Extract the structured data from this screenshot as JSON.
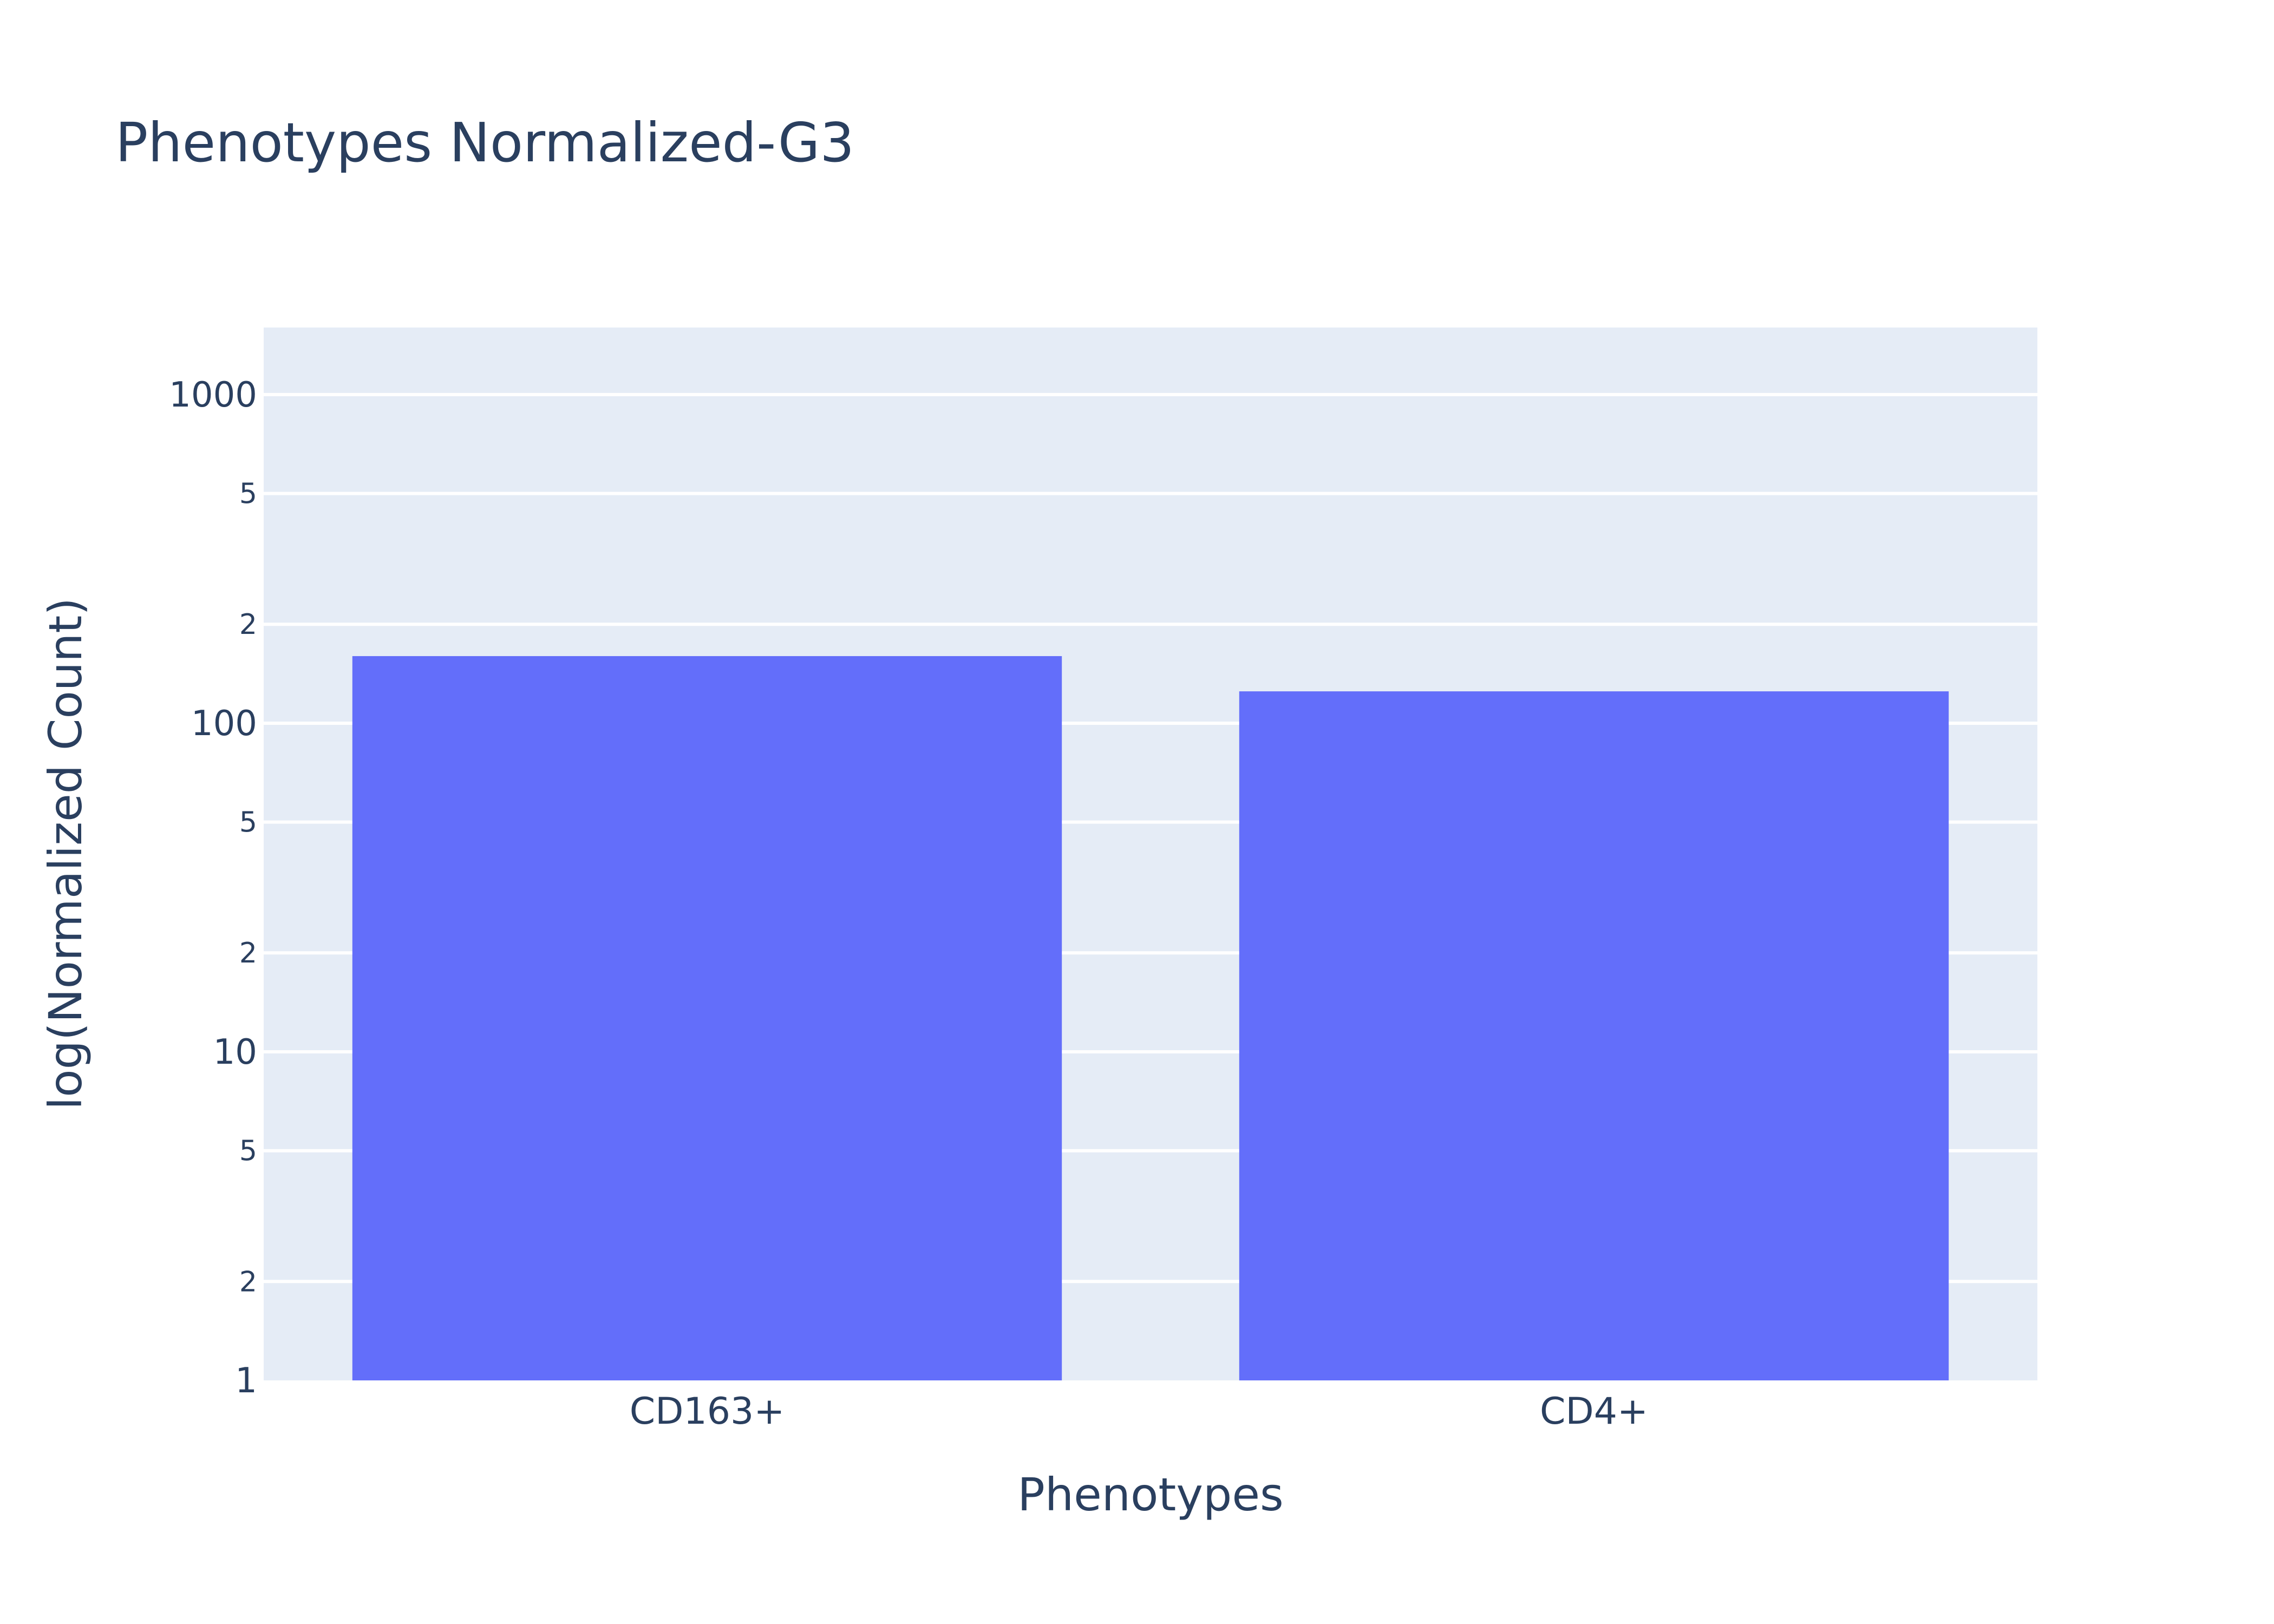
{
  "chart_data": {
    "type": "bar",
    "title": "Phenotypes Normalized-G3",
    "xlabel": "Phenotypes",
    "ylabel": "log(Normalized Count)",
    "categories": [
      "CD163+",
      "CD4+"
    ],
    "values": [
      160,
      125
    ],
    "yscale": "log",
    "ylim": [
      1,
      1600
    ],
    "major_ticks": [
      {
        "value": 1,
        "label": "1"
      },
      {
        "value": 10,
        "label": "10"
      },
      {
        "value": 100,
        "label": "100"
      },
      {
        "value": 1000,
        "label": "1000"
      }
    ],
    "minor_ticks": [
      {
        "value": 2,
        "label": "2"
      },
      {
        "value": 5,
        "label": "5"
      },
      {
        "value": 20,
        "label": "2"
      },
      {
        "value": 50,
        "label": "5"
      },
      {
        "value": 200,
        "label": "2"
      },
      {
        "value": 500,
        "label": "5"
      }
    ],
    "grid": true,
    "colors": {
      "bar": "#636efa",
      "plot_background": "#e5ecf6",
      "grid": "#ffffff",
      "text": "#2a3f5f"
    }
  }
}
